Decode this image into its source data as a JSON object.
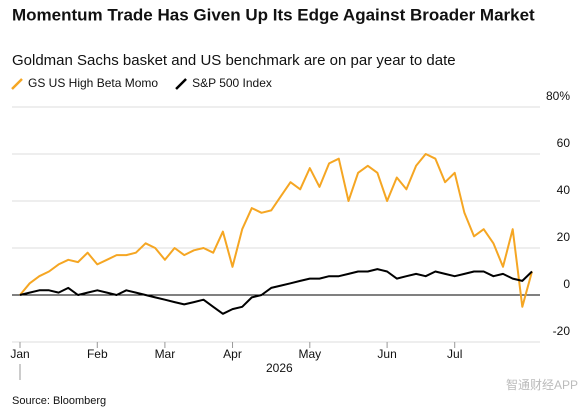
{
  "chart_data": {
    "type": "line",
    "title": "Momentum Trade Has Given Up Its Edge Against Broader Market",
    "subtitle": "Goldman Sachs basket and US benchmark are on par year to date",
    "x_label": "2026",
    "source": "Source: Bloomberg",
    "watermark": "智通财经APP",
    "categories": [
      "Jan",
      null,
      null,
      null,
      null,
      null,
      null,
      null,
      "Feb",
      null,
      null,
      null,
      null,
      null,
      null,
      "Mar",
      null,
      null,
      null,
      null,
      null,
      null,
      "Apr",
      null,
      null,
      null,
      null,
      null,
      null,
      null,
      "May",
      null,
      null,
      null,
      null,
      null,
      null,
      null,
      "Jun",
      null,
      null,
      null,
      null,
      null,
      null,
      "Jul",
      null,
      null,
      null,
      null,
      null,
      null,
      null,
      null
    ],
    "series": [
      {
        "name": "GS US High Beta Momo",
        "color": "#f5a623",
        "values": [
          0,
          5,
          8,
          10,
          13,
          15,
          14,
          18,
          13,
          15,
          17,
          17,
          18,
          22,
          20,
          15,
          20,
          17,
          19,
          20,
          18,
          27,
          12,
          28,
          37,
          35,
          36,
          42,
          48,
          45,
          54,
          46,
          56,
          58,
          40,
          52,
          55,
          52,
          40,
          50,
          45,
          55,
          60,
          58,
          48,
          52,
          35,
          25,
          28,
          22,
          12,
          28,
          -5,
          10
        ]
      },
      {
        "name": "S&P 500 Index",
        "color": "#000000",
        "values": [
          0,
          1,
          2,
          2,
          1,
          3,
          0,
          1,
          2,
          1,
          0,
          2,
          1,
          0,
          -1,
          -2,
          -3,
          -4,
          -3,
          -2,
          -5,
          -8,
          -6,
          -5,
          -1,
          0,
          3,
          4,
          5,
          6,
          7,
          7,
          8,
          8,
          9,
          10,
          10,
          11,
          10,
          7,
          8,
          9,
          8,
          10,
          9,
          8,
          9,
          10,
          10,
          8,
          9,
          7,
          6,
          10
        ]
      }
    ],
    "ylim": [
      -20,
      80
    ],
    "yticks": [
      {
        "value": 80,
        "label": "80%"
      },
      60,
      40,
      20,
      0,
      -20
    ],
    "grid": true
  }
}
